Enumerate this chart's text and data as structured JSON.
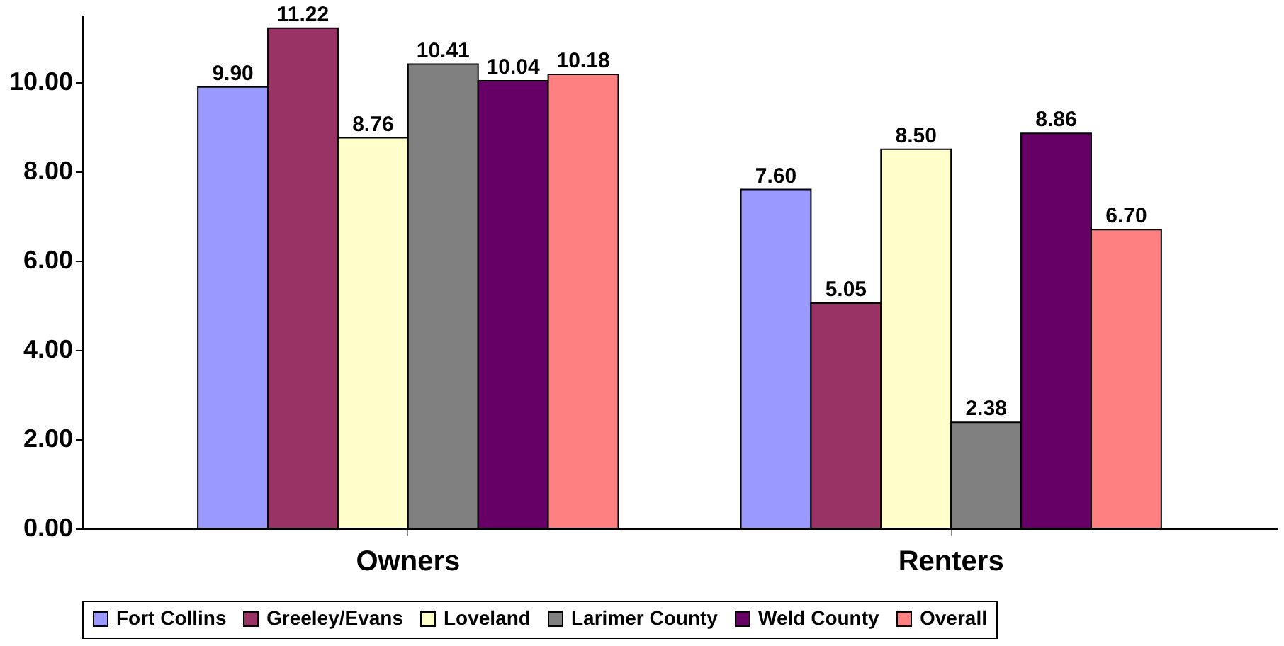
{
  "chart_data": {
    "type": "bar",
    "categories": [
      "Owners",
      "Renters"
    ],
    "series": [
      {
        "name": "Fort Collins",
        "color": "#9999ff",
        "values": [
          9.9,
          7.6
        ],
        "value_labels": [
          "9.90",
          "7.60"
        ]
      },
      {
        "name": "Greeley/Evans",
        "color": "#993366",
        "values": [
          11.22,
          5.05
        ],
        "value_labels": [
          "11.22",
          "5.05"
        ]
      },
      {
        "name": "Loveland",
        "color": "#ffffcc",
        "values": [
          8.76,
          8.5
        ],
        "value_labels": [
          "8.76",
          "8.50"
        ]
      },
      {
        "name": "Larimer County",
        "color": "#808080",
        "values": [
          10.41,
          2.38
        ],
        "value_labels": [
          "10.41",
          "2.38"
        ]
      },
      {
        "name": "Weld County",
        "color": "#660066",
        "values": [
          10.04,
          8.86
        ],
        "value_labels": [
          "10.04",
          "8.86"
        ]
      },
      {
        "name": "Overall",
        "color": "#ff8080",
        "values": [
          10.18,
          6.7
        ],
        "value_labels": [
          "10.18",
          "6.70"
        ]
      }
    ],
    "ylim": [
      0,
      11.5
    ],
    "yticks": [
      {
        "value": 0,
        "label": "0.00"
      },
      {
        "value": 2,
        "label": "2.00"
      },
      {
        "value": 4,
        "label": "4.00"
      },
      {
        "value": 6,
        "label": "6.00"
      },
      {
        "value": 8,
        "label": "8.00"
      },
      {
        "value": 10,
        "label": "10.00"
      }
    ],
    "grid": false,
    "legend": "bottom"
  }
}
